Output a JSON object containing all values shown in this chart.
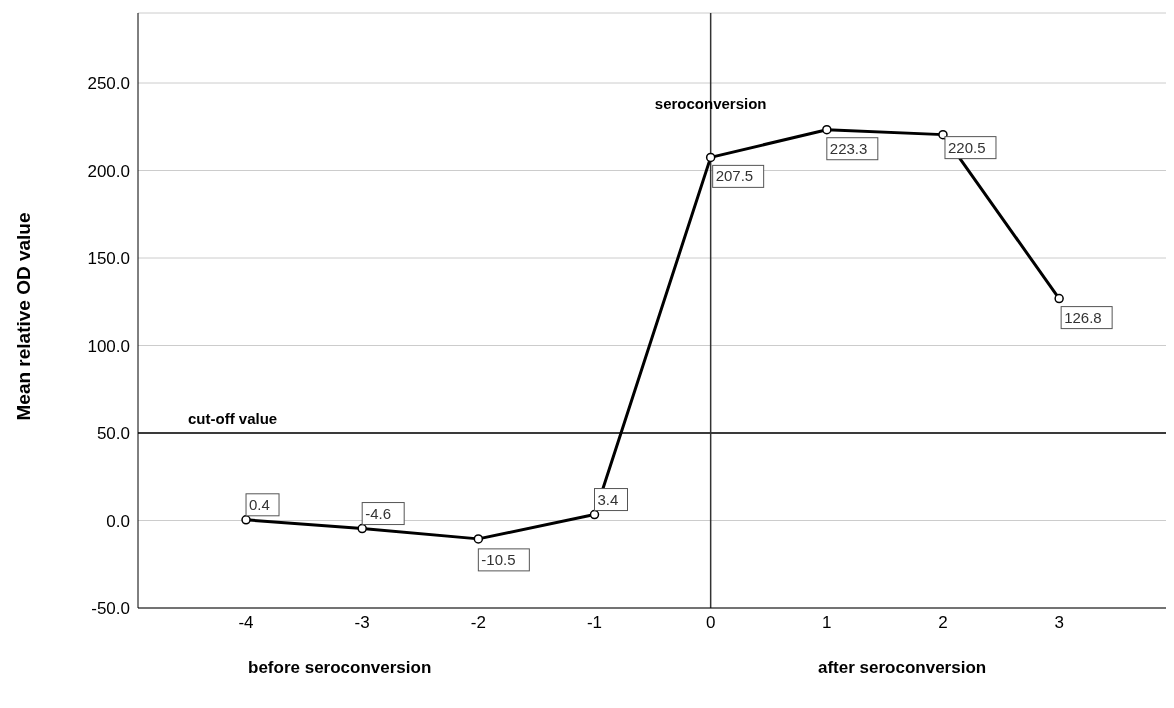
{
  "chart_data": {
    "type": "line",
    "ylabel": "Mean relative OD value",
    "x": [
      -4,
      -3,
      -2,
      -1,
      0,
      1,
      2,
      3
    ],
    "series": [
      {
        "color": "#000000",
        "values": [
          0.4,
          -4.6,
          -10.5,
          3.4,
          207.5,
          223.3,
          220.5,
          126.8
        ]
      }
    ],
    "xlim": [
      -4.93,
      3.92
    ],
    "xticks": [
      -4,
      -3,
      -2,
      -1,
      0,
      1,
      2,
      3
    ],
    "ylim": [
      -50,
      290
    ],
    "yticks": [
      {
        "value": -50,
        "label": "-50.0"
      },
      {
        "value": 0,
        "label": "0.0"
      },
      {
        "value": 50,
        "label": "50.0"
      },
      {
        "value": 100,
        "label": "100.0"
      },
      {
        "value": 150,
        "label": "150.0"
      },
      {
        "value": 200,
        "label": "200.0"
      },
      {
        "value": 250,
        "label": "250.0"
      }
    ],
    "grid": "y",
    "marker": "circle",
    "line_style": "solid",
    "data_labels": true,
    "ref_lines": [
      {
        "axis": "y",
        "value": 50,
        "label": "cut-off value",
        "color": "#000000"
      },
      {
        "axis": "x",
        "value": 0,
        "label": "seroconversion",
        "color": "#333333"
      }
    ],
    "annotations": [
      "before seroconversion",
      "after seroconversion"
    ]
  }
}
